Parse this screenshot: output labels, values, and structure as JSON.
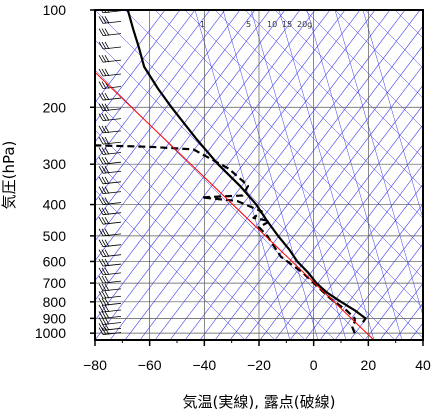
{
  "chart_data": {
    "type": "line",
    "title": "",
    "xlabel": "気温(実線), 露点(破線)",
    "ylabel": "気圧(hPa)",
    "xlim": [
      -80,
      40
    ],
    "ylim": [
      1050,
      100
    ],
    "y_scale": "log",
    "x_ticks": [
      -80,
      -60,
      -40,
      -20,
      0,
      20,
      40
    ],
    "x_tick_labels": [
      "−80",
      "−60",
      "−40",
      "−20",
      "0",
      "20",
      "40"
    ],
    "y_ticks": [
      100,
      200,
      300,
      400,
      500,
      600,
      700,
      800,
      900,
      1000
    ],
    "y_tick_labels": [
      "100",
      "200",
      "300",
      "400",
      "500",
      "600",
      "700",
      "800",
      "900",
      "1000"
    ],
    "mixing_ratio_labels": [
      "1",
      "5",
      "10",
      "15",
      "20g"
    ],
    "series": [
      {
        "role": "temperature",
        "style": "solid",
        "color": "#000000",
        "points": [
          [
            18,
            925
          ],
          [
            19,
            900
          ],
          [
            15,
            850
          ],
          [
            10,
            800
          ],
          [
            5,
            750
          ],
          [
            1,
            700
          ],
          [
            -2,
            650
          ],
          [
            -6,
            600
          ],
          [
            -9,
            550
          ],
          [
            -13,
            500
          ],
          [
            -17,
            450
          ],
          [
            -21,
            400
          ],
          [
            -27,
            350
          ],
          [
            -35,
            300
          ],
          [
            -43,
            250
          ],
          [
            -52,
            200
          ],
          [
            -57,
            175
          ],
          [
            -62,
            150
          ],
          [
            -64,
            130
          ],
          [
            -66,
            115
          ],
          [
            -68,
            100
          ]
        ]
      },
      {
        "role": "dewpoint",
        "style": "dashed",
        "color": "#000000",
        "points": [
          [
            15,
            1000
          ],
          [
            14,
            950
          ],
          [
            15,
            925
          ],
          [
            15,
            900
          ],
          [
            12,
            850
          ],
          [
            6,
            780
          ],
          [
            -4,
            650
          ],
          [
            -12,
            580
          ],
          [
            -17,
            500
          ],
          [
            -20,
            470
          ],
          [
            -16,
            450
          ],
          [
            -22,
            440
          ],
          [
            -19,
            420
          ],
          [
            -28,
            390
          ],
          [
            -41,
            380
          ],
          [
            -26,
            375
          ],
          [
            -24,
            350
          ],
          [
            -31,
            310
          ],
          [
            -44,
            270
          ],
          [
            -60,
            265
          ],
          [
            -82,
            262
          ]
        ]
      },
      {
        "role": "reference",
        "style": "solid",
        "color": "#ff0000",
        "points": [
          [
            22,
            1050
          ],
          [
            -82,
            150
          ]
        ]
      }
    ],
    "grid": true,
    "background_lines_color": "#3a3af0"
  }
}
